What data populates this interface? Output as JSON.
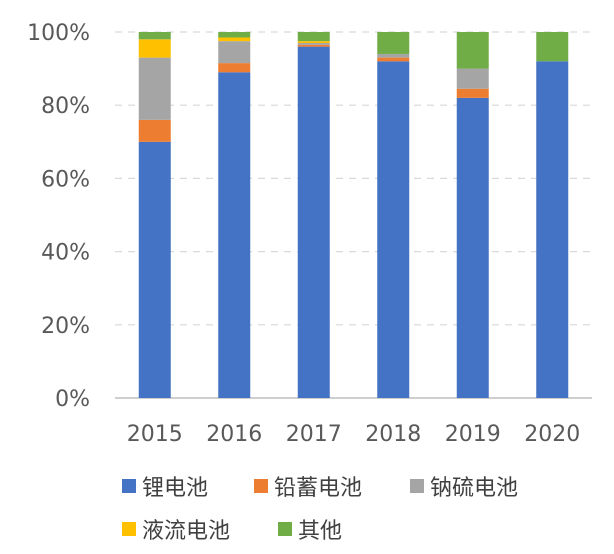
{
  "chart_data": {
    "type": "bar",
    "stacked": true,
    "categories": [
      "2015",
      "2016",
      "2017",
      "2018",
      "2019",
      "2020"
    ],
    "series": [
      {
        "name": "锂电池",
        "color": "#4472C4",
        "values": [
          70,
          89,
          96,
          92,
          82,
          92
        ]
      },
      {
        "name": "铅蓄电池",
        "color": "#ED7D31",
        "values": [
          6,
          2.5,
          0.5,
          1,
          2.5,
          0
        ]
      },
      {
        "name": "钠硫电池",
        "color": "#A5A5A5",
        "values": [
          17,
          6,
          0.5,
          1,
          5.5,
          0
        ]
      },
      {
        "name": "液流电池",
        "color": "#FFC000",
        "values": [
          5,
          1,
          0.5,
          0,
          0,
          0
        ]
      },
      {
        "name": "其他",
        "color": "#70AD47",
        "values": [
          2,
          1.5,
          2.5,
          6,
          10,
          8
        ]
      }
    ],
    "ylim": [
      0,
      100
    ],
    "yticks": [
      "0%",
      "20%",
      "40%",
      "60%",
      "80%",
      "100%"
    ],
    "ytick_values": [
      0,
      20,
      40,
      60,
      80,
      100
    ],
    "grid": true,
    "legend_position": "bottom"
  }
}
